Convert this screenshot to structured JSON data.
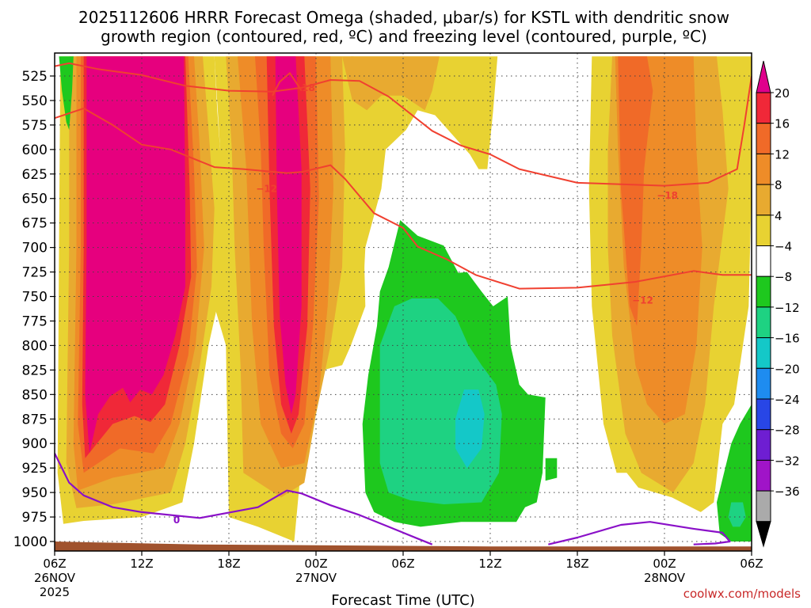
{
  "title_line1": "2025112606 HRRR Forecast Omega (shaded, μbar/s) for KSTL with dendritic snow",
  "title_line2": "growth region (contoured, red, ºC) and freezing level (contoured, purple, ºC)",
  "credit": "coolwx.com/models",
  "chart_data": {
    "type": "heatmap",
    "xlabel": "Forecast Time (UTC)",
    "ylabel": "",
    "x_ticks": [
      {
        "hour": 0,
        "label": "06Z",
        "date": "26NOV",
        "year": "2025"
      },
      {
        "hour": 6,
        "label": "12Z"
      },
      {
        "hour": 12,
        "label": "18Z"
      },
      {
        "hour": 18,
        "label": "00Z",
        "date": "27NOV"
      },
      {
        "hour": 24,
        "label": "06Z"
      },
      {
        "hour": 30,
        "label": "12Z"
      },
      {
        "hour": 36,
        "label": "18Z"
      },
      {
        "hour": 42,
        "label": "00Z",
        "date": "28NOV"
      },
      {
        "hour": 48,
        "label": "06Z"
      }
    ],
    "xlim_hours": [
      0,
      48
    ],
    "y_ticks": [
      525,
      550,
      575,
      600,
      625,
      650,
      675,
      700,
      725,
      750,
      775,
      800,
      825,
      850,
      875,
      900,
      925,
      950,
      975,
      1000
    ],
    "ylim_mb": [
      1010,
      505
    ],
    "colorbar": {
      "labels": [
        "20",
        "16",
        "12",
        "8",
        "4",
        "−4",
        "−8",
        "−12",
        "−16",
        "−20",
        "−24",
        "−28",
        "−32",
        "−36"
      ],
      "colors": [
        "#e0008c",
        "#f02838",
        "#f06a28",
        "#ee8c28",
        "#e8aa30",
        "#e8d232",
        "#ffffff",
        "#1ec81e",
        "#1ed282",
        "#14c8c8",
        "#1e8cf0",
        "#2846e6",
        "#6e1ed2",
        "#a014c8",
        "#aaaaaa",
        "#000000"
      ]
    },
    "shading_colors": {
      "w4": "#e8d232",
      "w8": "#e8aa30",
      "w12": "#ee8c28",
      "w16": "#f06a28",
      "w20": "#f02838",
      "wmax": "#e6007e",
      "g4": "#1ec81e",
      "g8": "#1ed282",
      "g12": "#14c8c8",
      "ground": "#a0522d"
    },
    "isotherms": [
      {
        "name": "-18",
        "color": "#f04030",
        "label": "−18",
        "points": [
          [
            0,
            515
          ],
          [
            1,
            512
          ],
          [
            3,
            518
          ],
          [
            6,
            524
          ],
          [
            9,
            535
          ],
          [
            12,
            540
          ],
          [
            15,
            541
          ],
          [
            17,
            537
          ],
          [
            19,
            529
          ],
          [
            21,
            530
          ],
          [
            23,
            546
          ],
          [
            26,
            581
          ],
          [
            28,
            596
          ],
          [
            30,
            605
          ],
          [
            32,
            620
          ],
          [
            36,
            634
          ],
          [
            42,
            637
          ],
          [
            45,
            634
          ],
          [
            47,
            620
          ],
          [
            47.5,
            575
          ],
          [
            48,
            525
          ]
        ]
      },
      {
        "name": "-18b",
        "color": "#f04030",
        "label": "",
        "points": [
          [
            0,
            568
          ],
          [
            2,
            558
          ],
          [
            4,
            575
          ],
          [
            6,
            595
          ],
          [
            8,
            600
          ],
          [
            11,
            618
          ],
          [
            13,
            620
          ],
          [
            16,
            624
          ],
          [
            17,
            623
          ],
          [
            19,
            616
          ],
          [
            20,
            630
          ],
          [
            22,
            665
          ],
          [
            24,
            680
          ],
          [
            25,
            699
          ],
          [
            27,
            712
          ],
          [
            29,
            728
          ],
          [
            32,
            742
          ],
          [
            36,
            741
          ],
          [
            40,
            735
          ],
          [
            44,
            724
          ],
          [
            46,
            728
          ],
          [
            48,
            728
          ]
        ]
      },
      {
        "name": "-18c",
        "color": "#f04030",
        "label": "",
        "points": [
          [
            15,
            545
          ],
          [
            15.5,
            531
          ],
          [
            16.2,
            522
          ],
          [
            17,
            540
          ]
        ]
      }
    ],
    "freezing_level": {
      "color": "#8a10c8",
      "label": "0",
      "points": [
        [
          0,
          910
        ],
        [
          1,
          940
        ],
        [
          2,
          953
        ],
        [
          4,
          965
        ],
        [
          6,
          970
        ],
        [
          10,
          976
        ],
        [
          14,
          965
        ],
        [
          16,
          948
        ],
        [
          17,
          951
        ],
        [
          19,
          963
        ],
        [
          21,
          973
        ],
        [
          23,
          985
        ],
        [
          25,
          997
        ],
        [
          26,
          1003
        ]
      ],
      "points2": [
        [
          34,
          1003
        ],
        [
          36,
          996
        ],
        [
          39,
          983
        ],
        [
          41,
          980
        ],
        [
          44,
          987
        ],
        [
          46,
          991
        ],
        [
          46.5,
          1000
        ],
        [
          45.5,
          1002
        ],
        [
          44,
          1003
        ]
      ]
    },
    "contour_labels": [
      {
        "hour": 17.2,
        "mb": 537,
        "text": "−18",
        "kind": "red"
      },
      {
        "hour": 42.2,
        "mb": 647,
        "text": "−18",
        "kind": "red"
      },
      {
        "hour": 14.6,
        "mb": 640,
        "text": "−12",
        "kind": "red"
      },
      {
        "hour": 40.5,
        "mb": 754,
        "text": "−12",
        "kind": "red"
      },
      {
        "hour": 8.4,
        "mb": 978,
        "text": "0",
        "kind": "purple"
      }
    ]
  }
}
